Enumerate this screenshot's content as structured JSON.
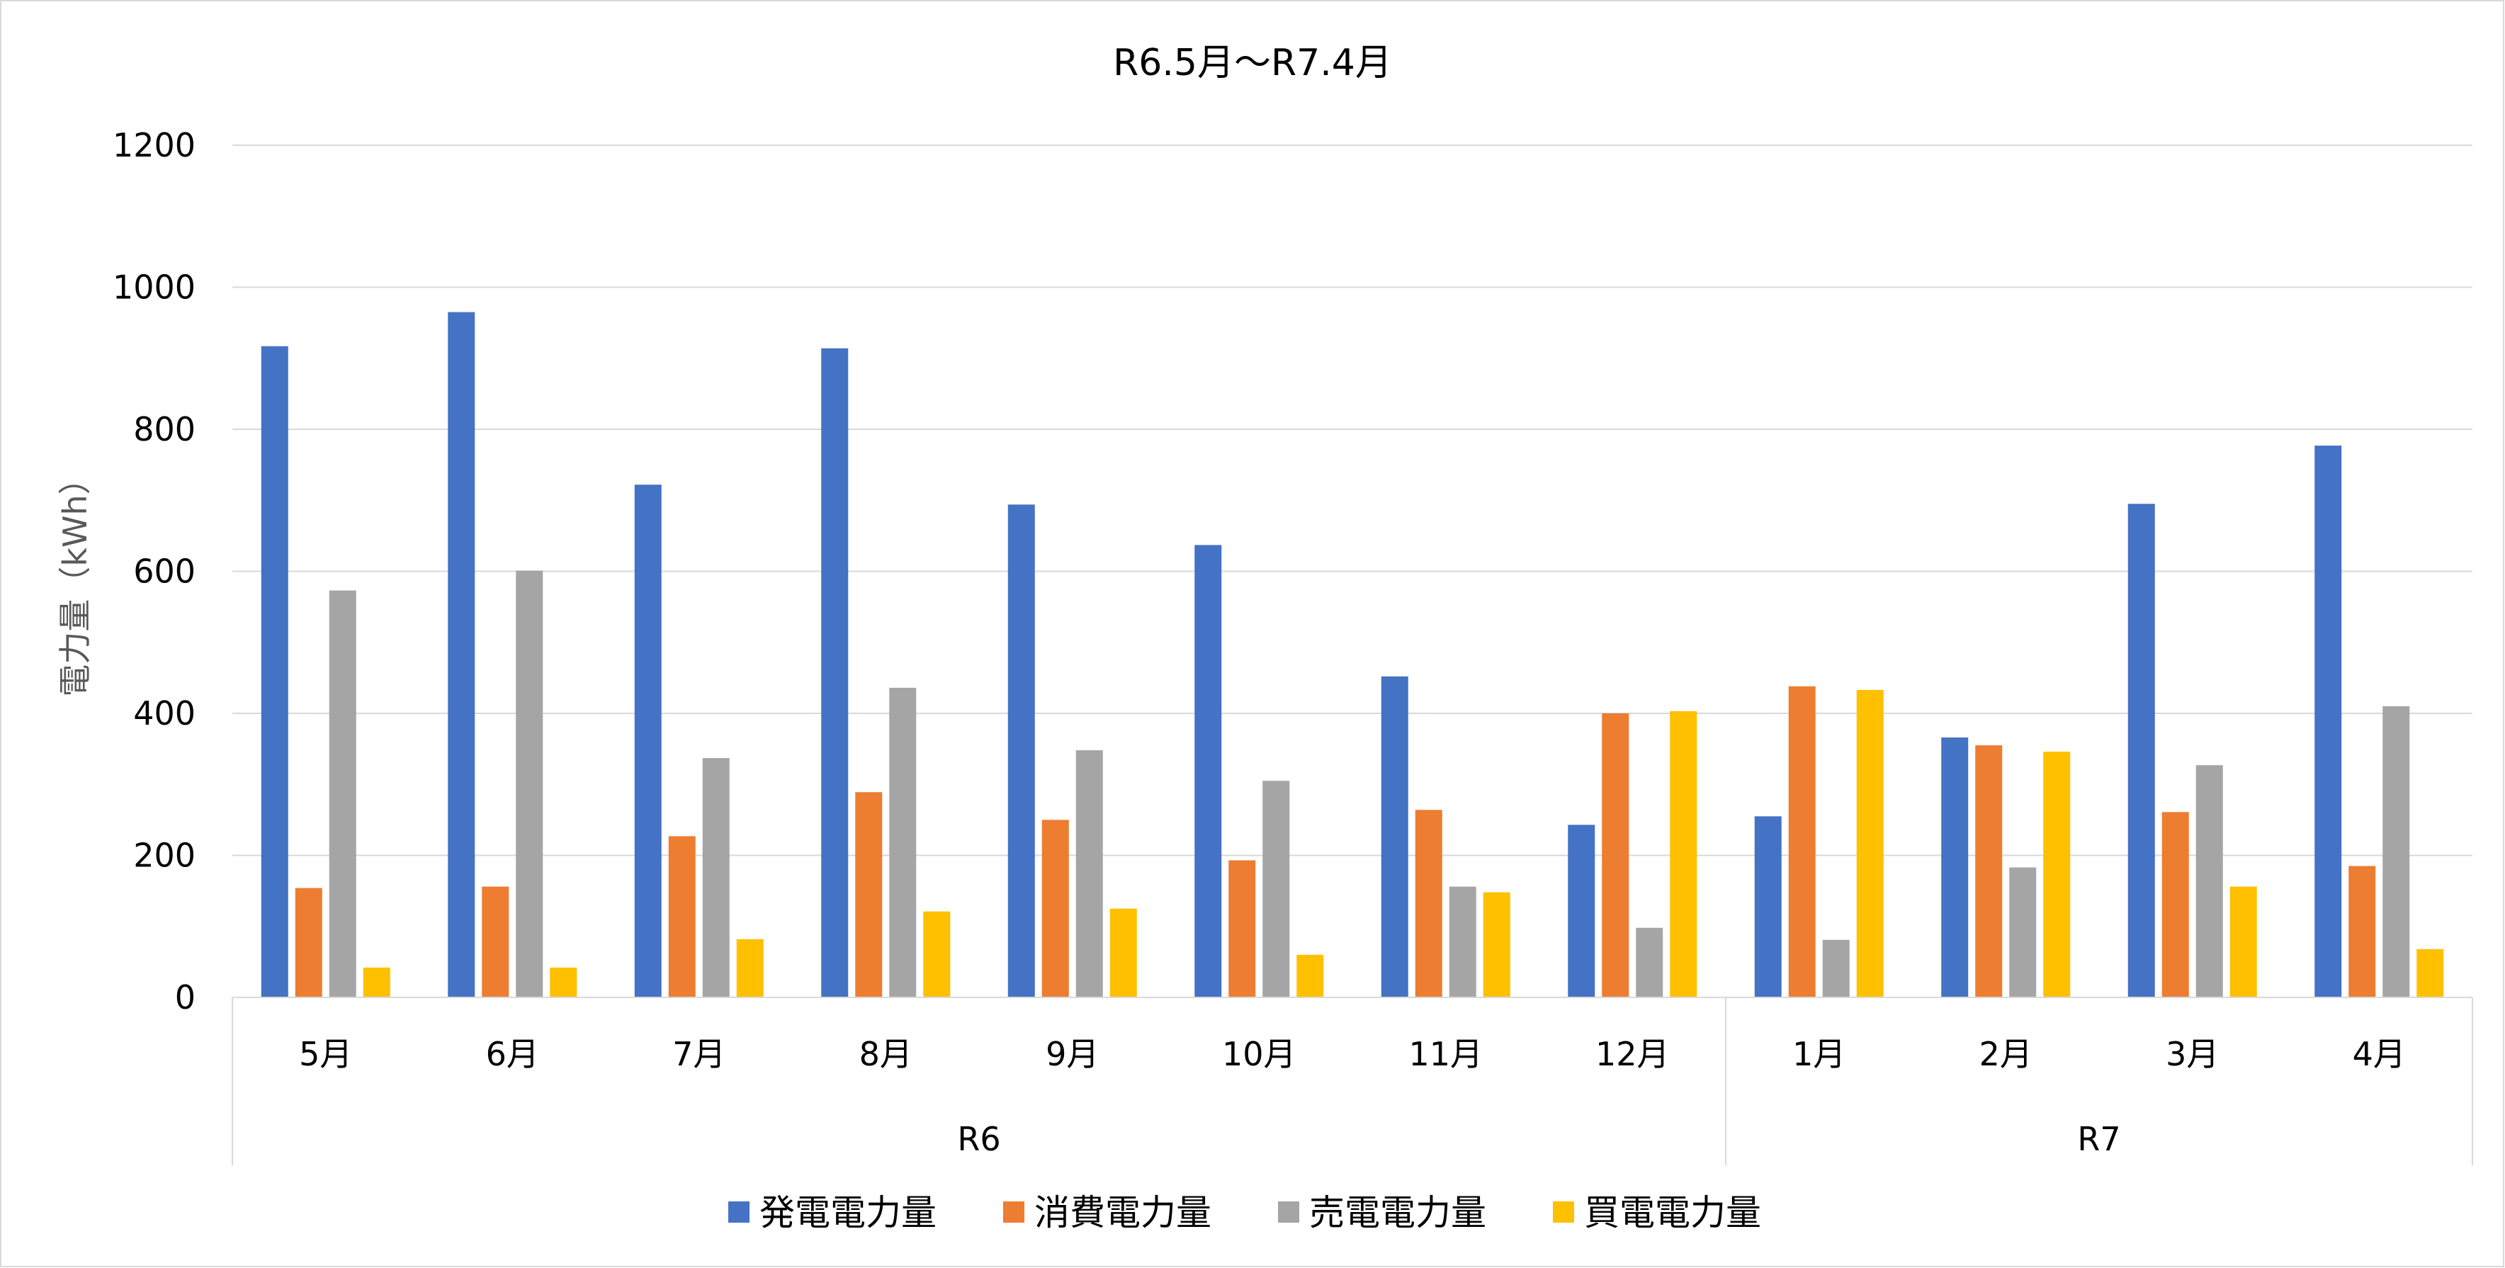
{
  "chart_data": {
    "type": "bar",
    "title": "R6.5月～R7.4月",
    "ylabel": "電力量（kWh）",
    "xlabel": "",
    "ylim": [
      0,
      1200
    ],
    "yticks": [
      0,
      200,
      400,
      600,
      800,
      1000,
      1200
    ],
    "grid": true,
    "legend_position": "bottom",
    "categories": [
      "5月",
      "6月",
      "7月",
      "8月",
      "9月",
      "10月",
      "11月",
      "12月",
      "1月",
      "2月",
      "3月",
      "4月"
    ],
    "groups": [
      {
        "label": "R6",
        "count": 8
      },
      {
        "label": "R7",
        "count": 4
      }
    ],
    "series": [
      {
        "name": "発電電力量",
        "color": "#4472C4",
        "values": [
          917,
          965,
          722,
          914,
          694,
          637,
          452,
          243,
          255,
          366,
          695,
          777
        ]
      },
      {
        "name": "消費電力量",
        "color": "#ED7D31",
        "values": [
          154,
          156,
          227,
          289,
          250,
          193,
          264,
          400,
          438,
          355,
          261,
          185
        ]
      },
      {
        "name": "売電電力量",
        "color": "#A5A5A5",
        "values": [
          573,
          601,
          337,
          436,
          348,
          305,
          156,
          98,
          81,
          183,
          327,
          410
        ]
      },
      {
        "name": "買電電力量",
        "color": "#FFC000",
        "values": [
          42,
          42,
          82,
          121,
          125,
          60,
          148,
          403,
          433,
          346,
          156,
          68
        ]
      }
    ]
  }
}
